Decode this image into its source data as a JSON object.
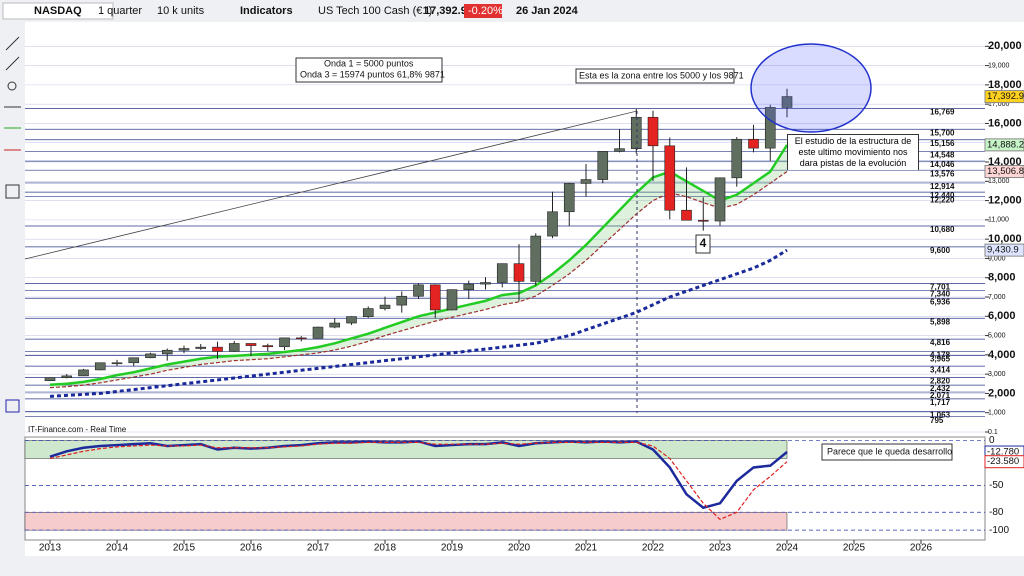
{
  "toolbar": {
    "symbol": "NASDAQ",
    "period": "1 quarter",
    "units": "10 k units",
    "indicators": "Indicators",
    "instrument": "US Tech 100 Cash (€1)",
    "price": "17,392.9",
    "change": "-0.20%",
    "date": "26 Jan 2024"
  },
  "annotations": {
    "wave1": "Onda 1 =   5000 puntos",
    "wave3": "Onda 3  = 15974 puntos  61,8%  9871",
    "zone": "Esta es la zona entre los 5000 y los 9871",
    "study": "El estudio de la estructura de este ultimo movimiento nos dara pistas de la evolución",
    "wave4": "4",
    "develop": "Parece que le queda desarrollo",
    "source": "IT-Finance.com - Real Time"
  },
  "chart_data": [
    {
      "type": "candlestick",
      "x": [
        2013,
        2013.25,
        2013.5,
        2013.75,
        2014,
        2014.25,
        2014.5,
        2014.75,
        2015,
        2015.25,
        2015.5,
        2015.75,
        2016,
        2016.25,
        2016.5,
        2016.75,
        2017,
        2017.25,
        2017.5,
        2017.75,
        2018,
        2018.25,
        2018.5,
        2018.75,
        2019,
        2019.25,
        2019.5,
        2019.75,
        2020,
        2020.25,
        2020.5,
        2020.75,
        2021,
        2021.25,
        2021.5,
        2021.75,
        2022,
        2022.25,
        2022.5,
        2022.75,
        2023,
        2023.25,
        2023.5,
        2023.75,
        2024
      ],
      "open": [
        2660,
        2820,
        2910,
        3220,
        3590,
        3590,
        3850,
        4050,
        4240,
        4330,
        4400,
        4180,
        4590,
        4480,
        4420,
        4880,
        4860,
        5440,
        5650,
        5980,
        6400,
        6580,
        7040,
        7630,
        6330,
        7380,
        7670,
        7750,
        8730,
        7810,
        10160,
        11420,
        12890,
        13090,
        14550,
        14690,
        16320,
        14840,
        11500,
        10980,
        10940,
        13180,
        15180,
        14720,
        16830
      ],
      "high": [
        2820,
        3010,
        3270,
        3600,
        3740,
        3860,
        4110,
        4330,
        4480,
        4560,
        4680,
        4720,
        4600,
        4580,
        4890,
        4970,
        5470,
        5900,
        6000,
        6510,
        7020,
        7290,
        7700,
        7660,
        7400,
        7850,
        8030,
        8740,
        9740,
        10300,
        12460,
        12930,
        13900,
        14570,
        15700,
        16770,
        16660,
        15270,
        13720,
        12170,
        13200,
        15290,
        15930,
        16970,
        17800
      ],
      "low": [
        2640,
        2780,
        2900,
        3200,
        3420,
        3400,
        3830,
        3700,
        4090,
        4260,
        3790,
        4150,
        3940,
        4190,
        4250,
        4700,
        4840,
        5380,
        5550,
        5920,
        6300,
        6190,
        6900,
        5900,
        6300,
        6900,
        7390,
        7500,
        6770,
        7600,
        10050,
        10680,
        12200,
        12900,
        14500,
        14450,
        13020,
        11030,
        10980,
        10440,
        10700,
        12720,
        14500,
        14060,
        16320
      ],
      "close": [
        2820,
        2910,
        3220,
        3590,
        3590,
        3850,
        4050,
        4240,
        4330,
        4400,
        4180,
        4590,
        4480,
        4420,
        4880,
        4860,
        5440,
        5650,
        5980,
        6400,
        6580,
        7040,
        7630,
        6330,
        7380,
        7670,
        7750,
        8730,
        7810,
        10160,
        11420,
        12890,
        13090,
        14550,
        14690,
        16320,
        14840,
        11500,
        10980,
        10940,
        13180,
        15180,
        14720,
        16830,
        17392.9
      ],
      "up_color": "#5f6e5f",
      "down_color": "#e32222",
      "series": [
        {
          "color": "#22cc22",
          "values": [
            2450,
            2500,
            2600,
            2750,
            2950,
            3100,
            3300,
            3500,
            3650,
            3800,
            3900,
            3950,
            4000,
            4050,
            4150,
            4250,
            4400,
            4600,
            4850,
            5100,
            5400,
            5700,
            6000,
            6200,
            6400,
            6600,
            6800,
            7100,
            7200,
            7600,
            8200,
            8900,
            9700,
            10600,
            11500,
            12400,
            13200,
            13500,
            13000,
            12500,
            12000,
            12300,
            12900,
            13500,
            14888.2
          ]
        },
        {
          "color": "#a03030",
          "dashed": true,
          "values": [
            2300,
            2350,
            2430,
            2550,
            2700,
            2850,
            3000,
            3200,
            3350,
            3500,
            3600,
            3700,
            3750,
            3800,
            3900,
            4000,
            4100,
            4250,
            4450,
            4700,
            5000,
            5250,
            5500,
            5750,
            5950,
            6150,
            6350,
            6600,
            6750,
            7050,
            7600,
            8200,
            8900,
            9700,
            10500,
            11300,
            12000,
            12400,
            12200,
            11900,
            11600,
            11800,
            12300,
            12900,
            13506.8
          ]
        },
        {
          "color": "#1a2a9a",
          "dotted": true,
          "values": [
            1850,
            1900,
            1950,
            2000,
            2100,
            2200,
            2300,
            2400,
            2500,
            2600,
            2700,
            2800,
            2900,
            3000,
            3100,
            3200,
            3300,
            3400,
            3500,
            3600,
            3700,
            3800,
            3900,
            4000,
            4100,
            4200,
            4300,
            4400,
            4500,
            4600,
            4800,
            5000,
            5300,
            5600,
            5900,
            6200,
            6600,
            7000,
            7300,
            7600,
            7900,
            8200,
            8500,
            8900,
            9430.9
          ]
        }
      ],
      "price_tags": [
        {
          "value": 17392.9,
          "label": "17,392.9",
          "color": "#ffd21f"
        },
        {
          "value": 14888.2,
          "label": "14,888.2",
          "color": "#c8f5c8"
        },
        {
          "value": 13506.8,
          "label": "13,506.8",
          "color": "#ffd6d6"
        },
        {
          "value": 9430.9,
          "label": "9,430.9",
          "color": "#dde4ff"
        }
      ],
      "levels": [
        {
          "value": 16769,
          "label": "16,769"
        },
        {
          "value": 15700,
          "label": "15,700"
        },
        {
          "value": 15156,
          "label": "15,156"
        },
        {
          "value": 14548,
          "label": "14,548"
        },
        {
          "value": 14046,
          "label": "14,046"
        },
        {
          "value": 13576,
          "label": "13,576"
        },
        {
          "value": 12914,
          "label": "12,914"
        },
        {
          "value": 12440,
          "label": "12,440"
        },
        {
          "value": 12220,
          "label": "12,220"
        },
        {
          "value": 10680,
          "label": "10,680"
        },
        {
          "value": 9600,
          "label": "9,600"
        },
        {
          "value": 7701,
          "label": "7,701"
        },
        {
          "value": 7340,
          "label": "7,340"
        },
        {
          "value": 6936,
          "label": "6,936"
        },
        {
          "value": 5898,
          "label": "5,898"
        },
        {
          "value": 4816,
          "label": "4,816"
        },
        {
          "value": 4178,
          "label": "4,178"
        },
        {
          "value": 3965,
          "label": "3,965"
        },
        {
          "value": 3414,
          "label": "3,414"
        },
        {
          "value": 2820,
          "label": "2,820"
        },
        {
          "value": 2432,
          "label": "2,432"
        },
        {
          "value": 2071,
          "label": "2,071"
        },
        {
          "value": 1717,
          "label": "1,717"
        },
        {
          "value": 1063,
          "label": "1,063"
        },
        {
          "value": 795,
          "label": "795"
        }
      ],
      "xlim": [
        2012.627,
        2026.955
      ],
      "xticks": [
        2013,
        2014,
        2015,
        2016,
        2017,
        2018,
        2019,
        2020,
        2021,
        2022,
        2023,
        2024,
        2025,
        2026
      ],
      "ylim": [
        0,
        21260
      ],
      "yticks": [
        {
          "value": 20000,
          "label": "20,000"
        },
        {
          "value": 19000,
          "label": "19,000"
        },
        {
          "value": 18000,
          "label": "18,000"
        },
        {
          "value": 17000,
          "label": "17,000"
        },
        {
          "value": 16000,
          "label": "16,000"
        },
        {
          "value": 15000,
          "label": "15,000"
        },
        {
          "value": 14000,
          "label": "14,000"
        },
        {
          "value": 13000,
          "label": "13,000"
        },
        {
          "value": 12000,
          "label": "12,000"
        },
        {
          "value": 11000,
          "label": "11,000"
        },
        {
          "value": 10000,
          "label": "10,000"
        },
        {
          "value": 9000,
          "label": "9,000"
        },
        {
          "value": 8000,
          "label": "8,000"
        },
        {
          "value": 7000,
          "label": "7,000"
        },
        {
          "value": 6000,
          "label": "6,000"
        },
        {
          "value": 5000,
          "label": "5,000"
        },
        {
          "value": 4000,
          "label": "4,000"
        },
        {
          "value": 3000,
          "label": "3,000"
        },
        {
          "value": 2000,
          "label": "2,000"
        },
        {
          "value": 1000,
          "label": "1,000"
        },
        0.1
      ]
    },
    {
      "type": "line",
      "series": [
        {
          "color": "#1c2a9c",
          "values": [
            -18,
            -12,
            -8,
            -6,
            -5,
            -4,
            -3,
            -6,
            -5,
            -4,
            -10,
            -8,
            -9,
            -8,
            -6,
            -5,
            -3,
            -2,
            -2,
            -1,
            -2,
            -2,
            -1,
            -6,
            -5,
            -4,
            -4,
            -2,
            -6,
            -3,
            -2,
            -1,
            -2,
            -1,
            -2,
            -1,
            -10,
            -30,
            -60,
            -75,
            -70,
            -45,
            -30,
            -28,
            -12.78
          ],
          "value_labels": [
            null,
            null,
            null,
            null,
            null,
            null,
            null,
            null,
            null,
            null,
            null,
            null,
            null,
            null,
            null,
            null,
            null,
            null,
            null,
            null,
            null,
            null,
            null,
            null,
            null,
            null,
            null,
            null,
            null,
            null,
            null,
            null,
            null,
            null,
            null,
            null,
            null,
            null,
            null,
            null,
            null,
            null,
            null,
            null,
            "-12.780"
          ]
        },
        {
          "color": "#e02020",
          "dashed": true,
          "values": [
            -20,
            -16,
            -12,
            -9,
            -7,
            -6,
            -5,
            -6,
            -6,
            -5,
            -8,
            -8,
            -8,
            -8,
            -7,
            -6,
            -4,
            -3,
            -3,
            -2,
            -2,
            -2,
            -2,
            -4,
            -4,
            -4,
            -4,
            -3,
            -4,
            -3,
            -2,
            -2,
            -2,
            -2,
            -2,
            -2,
            -6,
            -20,
            -45,
            -70,
            -88,
            -80,
            -55,
            -40,
            -23.58
          ],
          "value_labels": [
            null,
            null,
            null,
            null,
            null,
            null,
            null,
            null,
            null,
            null,
            null,
            null,
            null,
            null,
            null,
            null,
            null,
            null,
            null,
            null,
            null,
            null,
            null,
            null,
            null,
            null,
            null,
            null,
            null,
            null,
            null,
            null,
            null,
            null,
            null,
            null,
            null,
            null,
            null,
            null,
            null,
            null,
            null,
            null,
            "-23.580"
          ]
        }
      ],
      "zones": [
        {
          "from": 0,
          "to": -20,
          "color": "#cde8cd"
        },
        {
          "from": -80,
          "to": -100,
          "color": "#f6cccc"
        }
      ],
      "ylim": [
        -111,
        4
      ],
      "yticks": [
        0,
        -50,
        -80,
        -100
      ]
    }
  ]
}
